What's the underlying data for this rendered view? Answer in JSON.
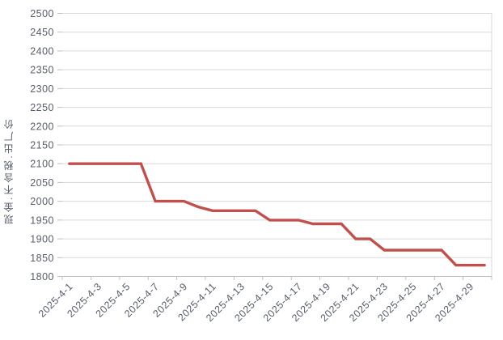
{
  "chart_data": {
    "type": "line",
    "title": "",
    "ylabel": "现金.不含税.出厂价",
    "xlabel": "",
    "ylim": [
      1800,
      2500
    ],
    "ytick_step": 50,
    "y_ticks": [
      1800,
      1850,
      1900,
      1950,
      2000,
      2050,
      2100,
      2150,
      2200,
      2250,
      2300,
      2350,
      2400,
      2450,
      2500
    ],
    "x_label_interval": 2,
    "x_tick_labels_shown": [
      "2025-4-1",
      "2025-4-3",
      "2025-4-5",
      "2025-4-7",
      "2025-4-9",
      "2025-4-11",
      "2025-4-13",
      "2025-4-15",
      "2025-4-17",
      "2025-4-19",
      "2025-4-21",
      "2025-4-23",
      "2025-4-25",
      "2025-4-27",
      "2025-4-29"
    ],
    "x": [
      "2025-4-1",
      "2025-4-2",
      "2025-4-3",
      "2025-4-4",
      "2025-4-5",
      "2025-4-6",
      "2025-4-7",
      "2025-4-8",
      "2025-4-9",
      "2025-4-10",
      "2025-4-11",
      "2025-4-12",
      "2025-4-13",
      "2025-4-14",
      "2025-4-15",
      "2025-4-16",
      "2025-4-17",
      "2025-4-18",
      "2025-4-19",
      "2025-4-20",
      "2025-4-21",
      "2025-4-22",
      "2025-4-23",
      "2025-4-24",
      "2025-4-25",
      "2025-4-26",
      "2025-4-27",
      "2025-4-28",
      "2025-4-29",
      "2025-4-30"
    ],
    "values": [
      2100,
      2100,
      2100,
      2100,
      2100,
      2100,
      2000,
      2000,
      2000,
      1985,
      1975,
      1975,
      1975,
      1975,
      1950,
      1950,
      1950,
      1940,
      1940,
      1940,
      1900,
      1900,
      1870,
      1870,
      1870,
      1870,
      1870,
      1830,
      1830,
      1830
    ],
    "grid": true,
    "legend_position": "none"
  },
  "colors": {
    "background": "#ffffff",
    "grid": "#d9d9d9",
    "axis": "#bfbfbf",
    "label": "#575e6b",
    "line": "#c0504d"
  }
}
